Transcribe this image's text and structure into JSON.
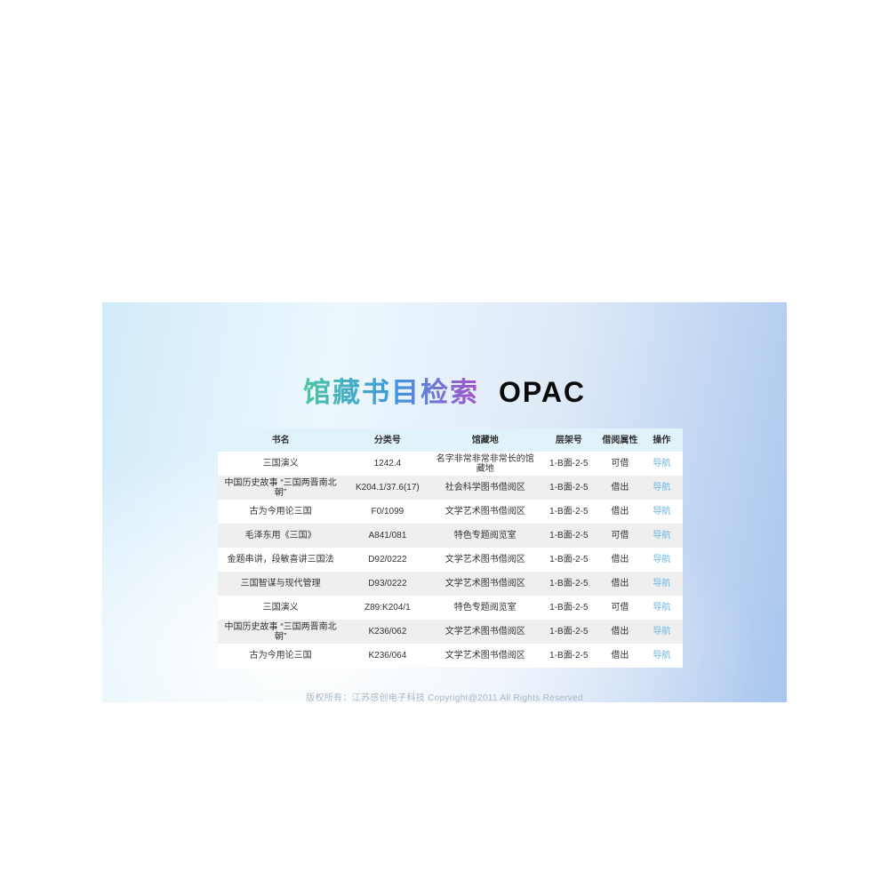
{
  "header": {
    "title_cn": "馆藏书目检索",
    "title_en": "OPAC"
  },
  "colors": {
    "title_gradient_start": "#4cc6a3",
    "title_gradient_mid": "#3f97e0",
    "title_gradient_end": "#a653cb",
    "table_header_bg": "#e0f2fa",
    "row_alt_bg": "#efefef",
    "nav_link": "#69b5ea",
    "background_blue": "#a9c6ee",
    "footer_text": "#a9b7c4"
  },
  "table": {
    "columns": [
      {
        "key": "title",
        "label": "书名"
      },
      {
        "key": "call_no",
        "label": "分类号"
      },
      {
        "key": "location",
        "label": "馆藏地"
      },
      {
        "key": "shelf",
        "label": "层架号"
      },
      {
        "key": "status",
        "label": "借阅属性"
      },
      {
        "key": "action",
        "label": "操作"
      }
    ],
    "rows": [
      {
        "title": "三国演义",
        "call_no": "1242.4",
        "location": "名字非常非常非常长的馆藏地",
        "shelf": "1-B面-2-5",
        "status": "可借",
        "action": "导航"
      },
      {
        "title": "中国历史故事 “三国两晋南北朝”",
        "call_no": "K204.1/37.6(17)",
        "location": "社会科学图书借阅区",
        "shelf": "1-B面-2-5",
        "status": "借出",
        "action": "导航"
      },
      {
        "title": "古为今用论三国",
        "call_no": "F0/1099",
        "location": "文学艺术图书借阅区",
        "shelf": "1-B面-2-5",
        "status": "借出",
        "action": "导航"
      },
      {
        "title": "毛泽东用《三国》",
        "call_no": "A841/081",
        "location": "特色专题阅览室",
        "shelf": "1-B面-2-5",
        "status": "可借",
        "action": "导航"
      },
      {
        "title": "金题串讲，段敏喜讲三国法",
        "call_no": "D92/0222",
        "location": "文学艺术图书借阅区",
        "shelf": "1-B面-2-5",
        "status": "借出",
        "action": "导航"
      },
      {
        "title": "三国智谋与现代管理",
        "call_no": "D93/0222",
        "location": "文学艺术图书借阅区",
        "shelf": "1-B面-2-5",
        "status": "借出",
        "action": "导航"
      },
      {
        "title": "三国演义",
        "call_no": "Z89:K204/1",
        "location": "特色专题阅览室",
        "shelf": "1-B面-2-5",
        "status": "可借",
        "action": "导航"
      },
      {
        "title": "中国历史故事 “三国两晋南北朝”",
        "call_no": "K236/062",
        "location": "文学艺术图书借阅区",
        "shelf": "1-B面-2-5",
        "status": "借出",
        "action": "导航"
      },
      {
        "title": "古为今用论三国",
        "call_no": "K236/064",
        "location": "文学艺术图书借阅区",
        "shelf": "1-B面-2-5",
        "status": "借出",
        "action": "导航"
      }
    ]
  },
  "footer": {
    "copyright": "版权所有：江苏感创电子科技 Copyright@2011 All Rights Reserved"
  }
}
